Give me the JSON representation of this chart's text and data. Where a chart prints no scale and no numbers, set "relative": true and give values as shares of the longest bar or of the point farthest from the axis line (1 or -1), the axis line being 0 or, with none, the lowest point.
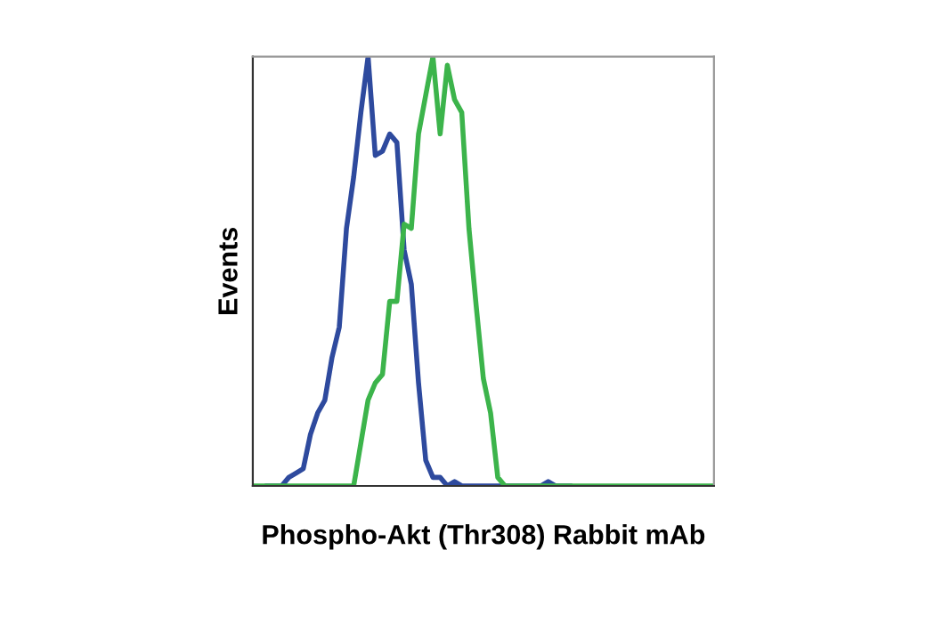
{
  "chart_data": {
    "type": "line",
    "relative": true,
    "xlabel": "Phospho-Akt (Thr308) Rabbit mAb",
    "ylabel": "Events",
    "grid": false,
    "legend": false,
    "marker": "none",
    "line_style": "solid",
    "categories": [
      null,
      null,
      null,
      null,
      null,
      null,
      null,
      null,
      null,
      null,
      null,
      null,
      null,
      null,
      null,
      null,
      null,
      null,
      null,
      null,
      null,
      null,
      null,
      null,
      null,
      null,
      null,
      null,
      null,
      null,
      null,
      null,
      null,
      null,
      null,
      null,
      null,
      null,
      null,
      null,
      null,
      null,
      null,
      null,
      null,
      null,
      null,
      null,
      null,
      null,
      null,
      null,
      null,
      null,
      null,
      null,
      null,
      null,
      null,
      null,
      null,
      null,
      null,
      null,
      null
    ],
    "series": [
      {
        "color": "#2e4a9e",
        "values": [
          null,
          null,
          0,
          0,
          0,
          0.02,
          0.03,
          0.04,
          0.12,
          0.17,
          0.2,
          0.3,
          0.37,
          0.6,
          0.72,
          0.87,
          1.0,
          0.77,
          0.78,
          0.82,
          0.8,
          0.55,
          0.47,
          0.24,
          0.06,
          0.02,
          0.02,
          0,
          0.01,
          0,
          0,
          0,
          0,
          0,
          0,
          0,
          0,
          0,
          0,
          0,
          0,
          0.01,
          0,
          0,
          0,
          null,
          null,
          null,
          null,
          null,
          null,
          null,
          null,
          null,
          null,
          null,
          null,
          null,
          null,
          null,
          null,
          null,
          null,
          null,
          null
        ]
      },
      {
        "color": "#3cb44b",
        "values": [
          0,
          0,
          0,
          0,
          0,
          0,
          0,
          0,
          0,
          0,
          0,
          0,
          0,
          0,
          0,
          0.1,
          0.2,
          0.24,
          0.26,
          0.43,
          0.43,
          0.61,
          0.6,
          0.82,
          0.91,
          1.0,
          0.82,
          0.98,
          0.9,
          0.87,
          0.6,
          0.42,
          0.25,
          0.17,
          0.02,
          0,
          0,
          0,
          0,
          0,
          0,
          0,
          0,
          0,
          0,
          0,
          0,
          0,
          0,
          0,
          0,
          0,
          0,
          0,
          0,
          0,
          0,
          0,
          0,
          0,
          0,
          0,
          0,
          0,
          0
        ]
      }
    ]
  }
}
